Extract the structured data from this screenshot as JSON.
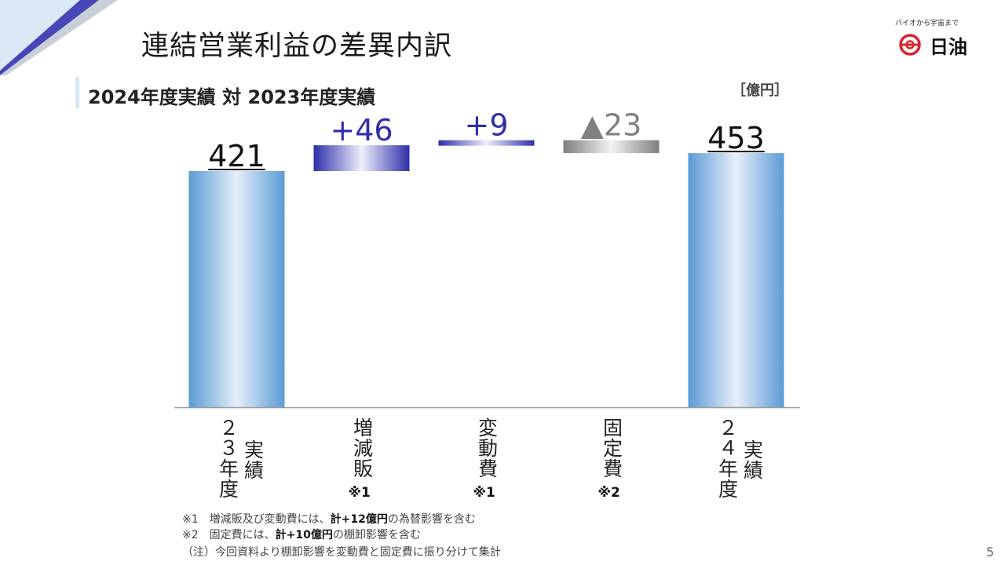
{
  "header": {
    "title": "連結営業利益の差異内訳",
    "subtitle": "2024年度実績 対 2023年度実績",
    "unit": "［億円］"
  },
  "logo": {
    "tagline": "バイオから宇宙まで",
    "name": "日油"
  },
  "colors": {
    "base_bar": "#5b9bd5",
    "increase_bar": "#2e2eaa",
    "decrease_bar": "#7f7f7f",
    "increase_label": "#2e2eaa",
    "decrease_label": "#808080"
  },
  "chart_data": {
    "type": "waterfall",
    "categories": [
      "23年度実績",
      "増減販",
      "変動費",
      "固定費",
      "24年度実績"
    ],
    "steps": [
      {
        "label": "421",
        "value": 421,
        "kind": "total"
      },
      {
        "label": "+46",
        "value": 46,
        "kind": "increase",
        "note": "※1"
      },
      {
        "label": "+9",
        "value": 9,
        "kind": "increase",
        "note": "※1"
      },
      {
        "label": "▲23",
        "value": -23,
        "kind": "decrease",
        "note": "※2"
      },
      {
        "label": "453",
        "value": 453,
        "kind": "total"
      }
    ],
    "category_lines": [
      [
        [
          "２",
          "３",
          "年",
          "度"
        ],
        [
          "実",
          "績"
        ]
      ],
      [
        [
          "増",
          "減",
          "販"
        ]
      ],
      [
        [
          "変",
          "動",
          "費"
        ]
      ],
      [
        [
          "固",
          "定",
          "費"
        ]
      ],
      [
        [
          "２",
          "４",
          "年",
          "度"
        ],
        [
          "実",
          "績"
        ]
      ]
    ]
  },
  "footnotes": [
    {
      "pre": "※1　増減販及び変動費には、",
      "bold": "計+12億円",
      "post": "の為替影響を含む"
    },
    {
      "pre": "※2　固定費には、",
      "bold": "計+10億円",
      "post": "の棚卸影響を含む"
    },
    {
      "pre": "（注）今回資料より棚卸影響を変動費と固定費に振り分けて集計",
      "bold": "",
      "post": ""
    }
  ],
  "page_number": "5"
}
